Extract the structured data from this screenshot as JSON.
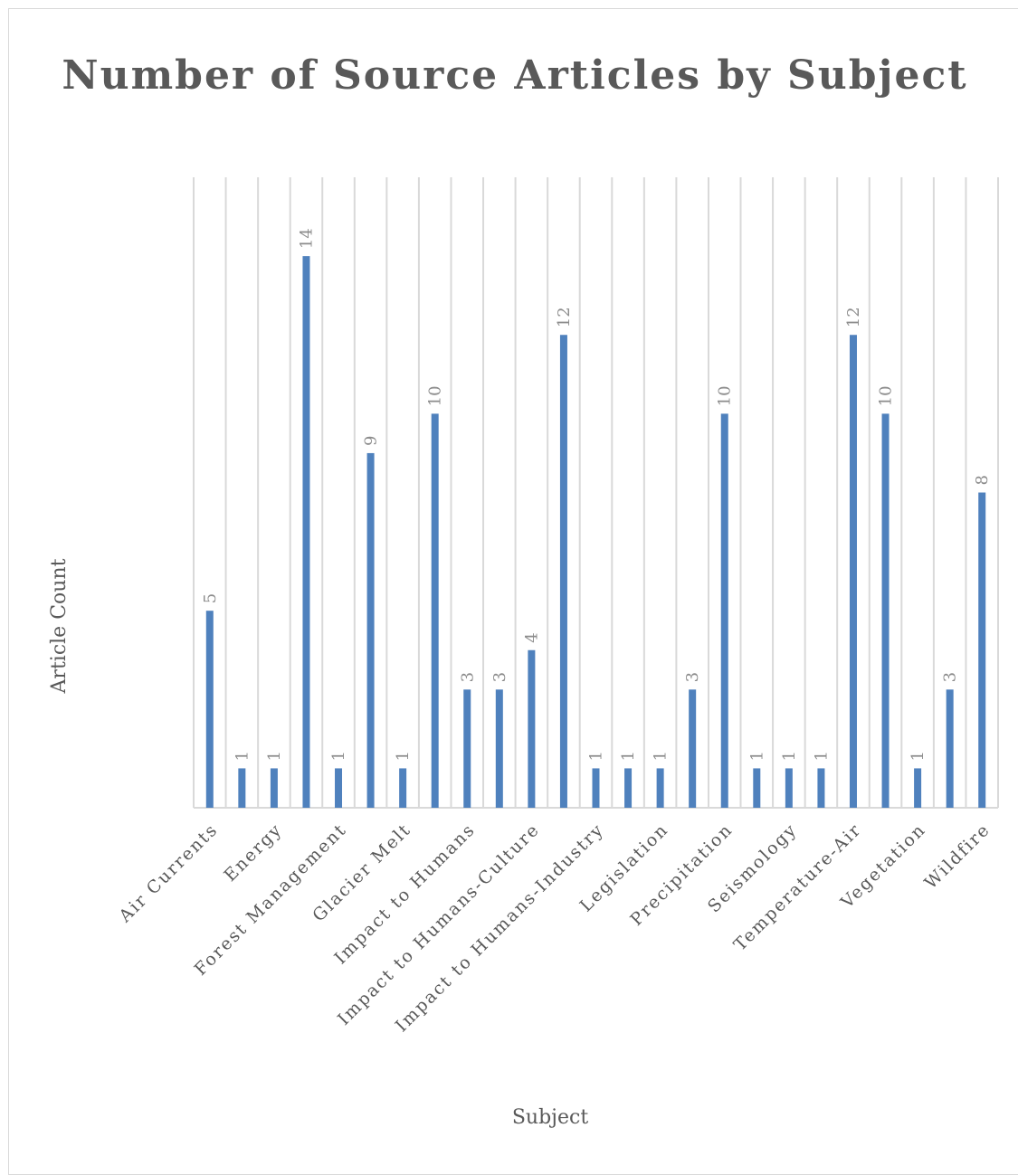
{
  "chart_data": {
    "type": "bar",
    "title": "Number of Source Articles by Subject",
    "xlabel": "Subject",
    "ylabel": "Article Count",
    "ylim": [
      0,
      16
    ],
    "grid": true,
    "bar_color": "#4f81bd",
    "categories": [
      "Air Currents",
      "",
      "Energy",
      "",
      "Forest Management",
      "",
      "Glacier Melt",
      "",
      "Impact to Humans",
      "",
      "Impact to Humans-Culture",
      "",
      "Impact to Humans-Industry",
      "",
      "Legislation",
      "",
      "Precipitation",
      "",
      "Seismology",
      "",
      "Temperature-Air",
      "",
      "Vegetation",
      "",
      "Wildfire"
    ],
    "values": [
      5,
      1,
      1,
      14,
      1,
      9,
      1,
      10,
      3,
      3,
      4,
      12,
      1,
      1,
      1,
      3,
      10,
      1,
      1,
      1,
      12,
      10,
      1,
      3,
      8
    ]
  }
}
